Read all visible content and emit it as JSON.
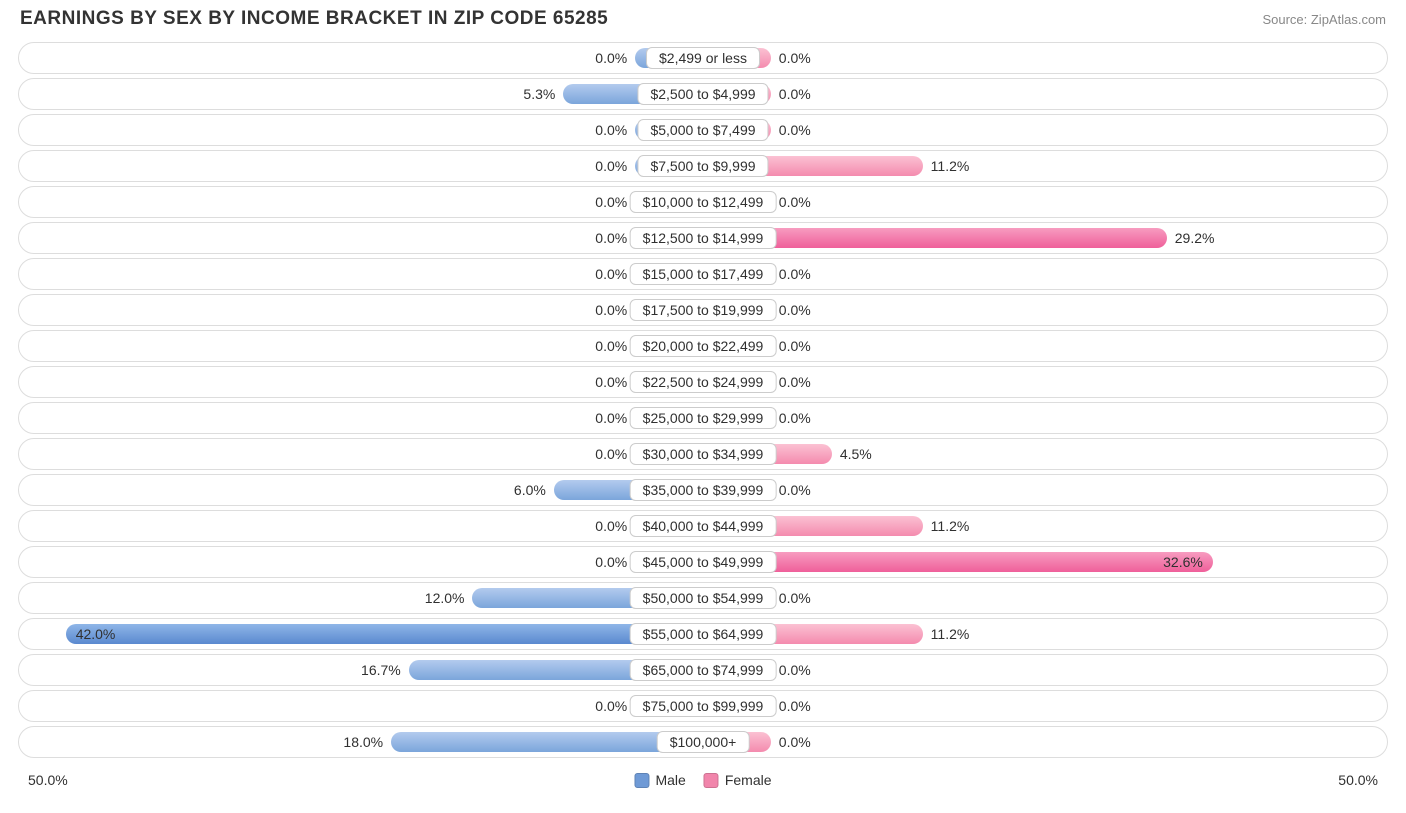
{
  "title": "EARNINGS BY SEX BY INCOME BRACKET IN ZIP CODE 65285",
  "source": "Source: ZipAtlas.com",
  "chart": {
    "type": "diverging-bar",
    "axis_max_percent": 50.0,
    "axis_left_label": "50.0%",
    "axis_right_label": "50.0%",
    "base_bar_percent": 5.0,
    "colors": {
      "male_gradient_top": "#b3cbee",
      "male_gradient_bottom": "#7ba5db",
      "male_highlight_top": "#8fb6e8",
      "male_highlight_bottom": "#5a89cf",
      "female_gradient_top": "#fbc1d3",
      "female_gradient_bottom": "#f48bae",
      "female_highlight_top": "#f79cc0",
      "female_highlight_bottom": "#ef5f9a",
      "track_border": "#dddddd",
      "badge_border": "#cccccc",
      "text": "#303030",
      "background": "#ffffff"
    },
    "legend": {
      "male": {
        "label": "Male",
        "color": "#6f9ad6"
      },
      "female": {
        "label": "Female",
        "color": "#f185ab"
      }
    },
    "rows": [
      {
        "category": "$2,499 or less",
        "male": 0.0,
        "female": 0.0
      },
      {
        "category": "$2,500 to $4,999",
        "male": 5.3,
        "female": 0.0
      },
      {
        "category": "$5,000 to $7,499",
        "male": 0.0,
        "female": 0.0
      },
      {
        "category": "$7,500 to $9,999",
        "male": 0.0,
        "female": 11.2
      },
      {
        "category": "$10,000 to $12,499",
        "male": 0.0,
        "female": 0.0
      },
      {
        "category": "$12,500 to $14,999",
        "male": 0.0,
        "female": 29.2,
        "female_highlight": true
      },
      {
        "category": "$15,000 to $17,499",
        "male": 0.0,
        "female": 0.0
      },
      {
        "category": "$17,500 to $19,999",
        "male": 0.0,
        "female": 0.0
      },
      {
        "category": "$20,000 to $22,499",
        "male": 0.0,
        "female": 0.0
      },
      {
        "category": "$22,500 to $24,999",
        "male": 0.0,
        "female": 0.0
      },
      {
        "category": "$25,000 to $29,999",
        "male": 0.0,
        "female": 0.0
      },
      {
        "category": "$30,000 to $34,999",
        "male": 0.0,
        "female": 4.5
      },
      {
        "category": "$35,000 to $39,999",
        "male": 6.0,
        "female": 0.0
      },
      {
        "category": "$40,000 to $44,999",
        "male": 0.0,
        "female": 11.2
      },
      {
        "category": "$45,000 to $49,999",
        "male": 0.0,
        "female": 32.6,
        "female_highlight": true
      },
      {
        "category": "$50,000 to $54,999",
        "male": 12.0,
        "female": 0.0
      },
      {
        "category": "$55,000 to $64,999",
        "male": 42.0,
        "female": 11.2,
        "male_highlight": true
      },
      {
        "category": "$65,000 to $74,999",
        "male": 16.7,
        "female": 0.0
      },
      {
        "category": "$75,000 to $99,999",
        "male": 0.0,
        "female": 0.0
      },
      {
        "category": "$100,000+",
        "male": 18.0,
        "female": 0.0
      }
    ]
  }
}
